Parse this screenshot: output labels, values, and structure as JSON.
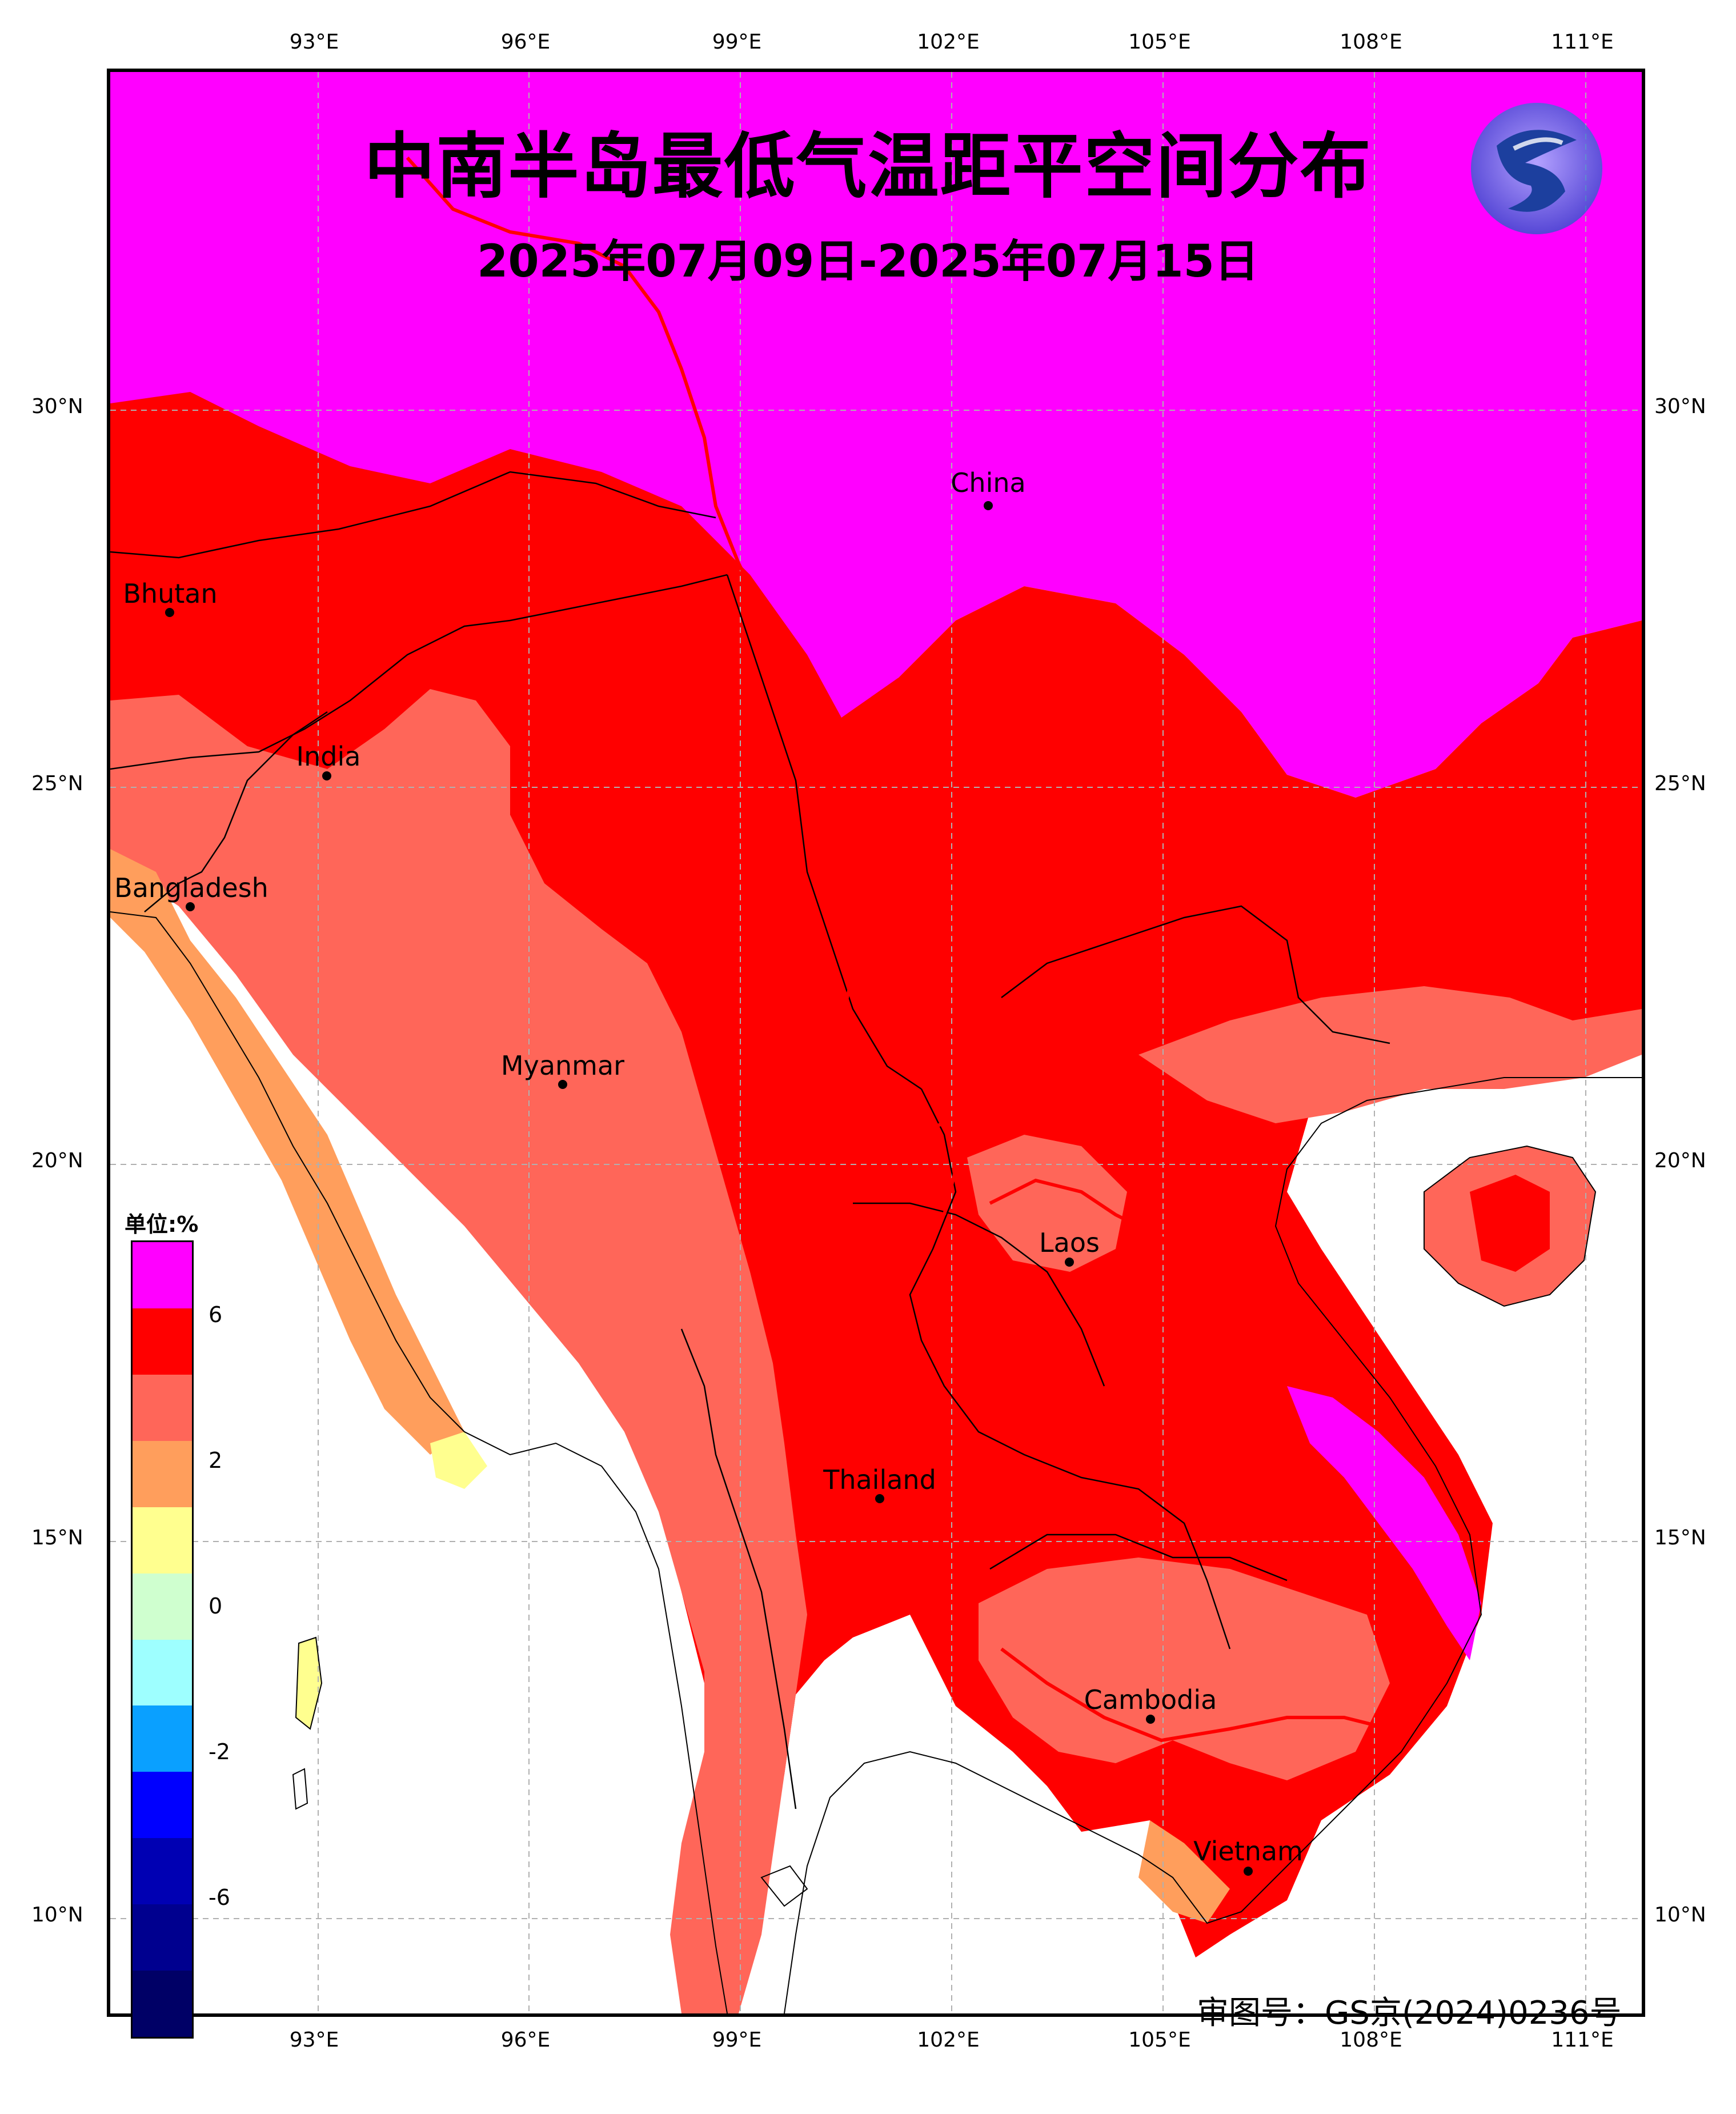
{
  "map": {
    "title": "中南半岛最低气温距平空间分布",
    "subtitle": "2025年07月09日-2025年07月15日",
    "approval_number": "审图号：GS京(2024)0236号",
    "logo_icon": "cma-dragon-logo-icon",
    "longitude_ticks": [
      "93°E",
      "96°E",
      "99°E",
      "102°E",
      "105°E",
      "108°E",
      "111°E"
    ],
    "latitude_ticks": [
      "30°N",
      "25°N",
      "20°N",
      "15°N",
      "10°N"
    ],
    "countries": [
      {
        "name": "China"
      },
      {
        "name": "Bhutan"
      },
      {
        "name": "India"
      },
      {
        "name": "Bangladesh"
      },
      {
        "name": "Myanmar"
      },
      {
        "name": "Laos"
      },
      {
        "name": "Thailand"
      },
      {
        "name": "Cambodia"
      },
      {
        "name": "Vietnam"
      }
    ],
    "legend": {
      "unit": "单位:%",
      "tick_labels": [
        "6",
        "2",
        "0",
        "-2",
        "-6"
      ],
      "colors": [
        "#ff00ff",
        "#ff0000",
        "#ff6659",
        "#ff9e5c",
        "#ffff8f",
        "#cfffcf",
        "#9effff",
        "#0aa0ff",
        "#0000ff",
        "#0000b3",
        "#00008f",
        "#000066"
      ]
    },
    "dominant_colors": {
      "north_plateau": "#ff00ff",
      "inland": "#ff0000",
      "lowland": "#ff6659",
      "coast": "#ff9e5c",
      "near_zero": "#ffff8f",
      "border_line": "#ff0000"
    }
  }
}
